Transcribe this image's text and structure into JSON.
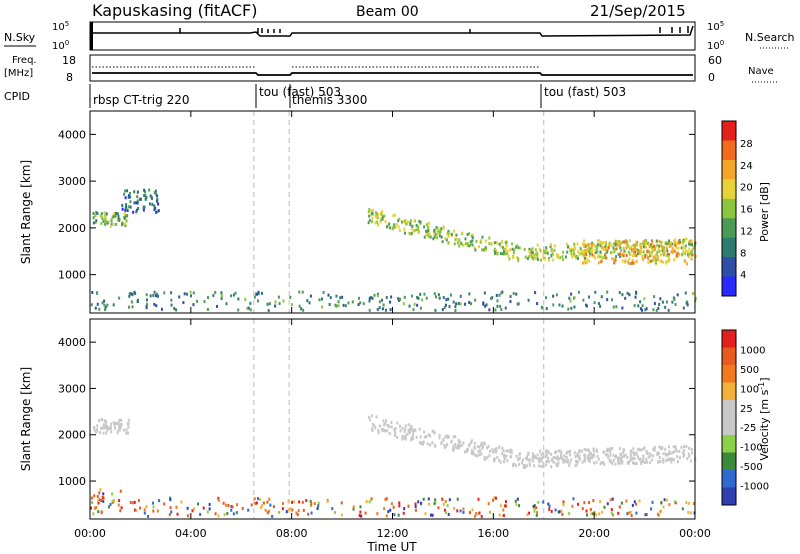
{
  "header": {
    "station": "Kapuskasing (fitACF)",
    "beam": "Beam 00",
    "date": "21/Sep/2015"
  },
  "nsky_panel": {
    "label": "N.Sky",
    "right_label": "N.Search",
    "left_ticks": [
      "10^5",
      "10^0"
    ],
    "right_ticks": [
      "10^5",
      "10^0"
    ]
  },
  "freq_panel": {
    "label_line1": "Freq.",
    "label_line2": "[MHz]",
    "right_label": "Nave",
    "left_ticks": [
      "18",
      "8"
    ],
    "right_ticks": [
      "60",
      "0"
    ]
  },
  "cpid": {
    "label": "CPID",
    "segments": [
      {
        "name": "rbsp CT-trig 220",
        "start_ut": 0.0
      },
      {
        "name": "tou (fast) 503",
        "start_ut": 6.5
      },
      {
        "name": "themis 3300",
        "start_ut": 7.9
      },
      {
        "name": "tou (fast) 503",
        "start_ut": 18.0
      }
    ]
  },
  "colors": {
    "power_scale": [
      "#2a2aff",
      "#2e4fa6",
      "#2f7a6e",
      "#4d9a57",
      "#8bc63f",
      "#e8d23a",
      "#f4a62a",
      "#f26a1e",
      "#e51e1e"
    ],
    "velocity_scale": [
      "#2e3fb0",
      "#2e6ad0",
      "#3a8a3a",
      "#8cd04a",
      "#c8c8c8",
      "#c8c8c8",
      "#f2b23a",
      "#f27a1e",
      "#e85a1e",
      "#e51e1e"
    ]
  },
  "chart_data": [
    {
      "type": "heatmap",
      "id": "power",
      "ylabel": "Slant Range [km]",
      "xlabel": "",
      "colorbar_label": "Power [dB]",
      "colorbar_ticks": [
        "28",
        "24",
        "20",
        "16",
        "12",
        "8",
        "4"
      ],
      "xlim": [
        0,
        24
      ],
      "ylim": [
        180,
        4500
      ],
      "yticks": [
        "1000",
        "2000",
        "3000",
        "4000"
      ],
      "xticks": [
        "00:00",
        "04:00",
        "08:00",
        "12:00",
        "16:00",
        "20:00",
        "00:00"
      ],
      "features": [
        {
          "desc_ut": [
            0.1,
            1.5
          ],
          "range_km": [
            2000,
            2300
          ],
          "power_db": 12
        },
        {
          "desc_ut": [
            1.2,
            2.7
          ],
          "range_km": [
            2300,
            2800
          ],
          "power_db": 6
        },
        {
          "desc_ut": [
            11.0,
            24.0
          ],
          "range_km": [
            1100,
            2300
          ],
          "power_db": 14
        },
        {
          "desc_ut": [
            19.5,
            24.0
          ],
          "range_km": [
            1200,
            1700
          ],
          "power_db": 20
        },
        {
          "desc_ut": [
            0.0,
            24.0
          ],
          "range_km": [
            200,
            600
          ],
          "power_db": 8
        }
      ]
    },
    {
      "type": "heatmap",
      "id": "velocity",
      "ylabel": "Slant Range [km]",
      "xlabel": "Time UT",
      "colorbar_label": "Velocity [m s^-1]",
      "colorbar_ticks": [
        "1000",
        "500",
        "100",
        "25",
        "-25",
        "-100",
        "-500",
        "-1000"
      ],
      "xlim": [
        0,
        24
      ],
      "ylim": [
        180,
        4500
      ],
      "yticks": [
        "1000",
        "2000",
        "3000",
        "4000"
      ],
      "xticks": [
        "00:00",
        "04:00",
        "08:00",
        "12:00",
        "16:00",
        "20:00",
        "00:00"
      ],
      "features": [
        {
          "desc_ut": [
            0.1,
            1.5
          ],
          "range_km": [
            2000,
            2300
          ],
          "velocity": 0
        },
        {
          "desc_ut": [
            11.0,
            24.0
          ],
          "range_km": [
            1100,
            2300
          ],
          "velocity": 0
        },
        {
          "desc_ut": [
            0.1,
            1.2
          ],
          "range_km": [
            500,
            800
          ],
          "velocity": -300
        },
        {
          "desc_ut": [
            0.0,
            24.0
          ],
          "range_km": [
            200,
            600
          ],
          "velocity": -100
        }
      ]
    }
  ]
}
